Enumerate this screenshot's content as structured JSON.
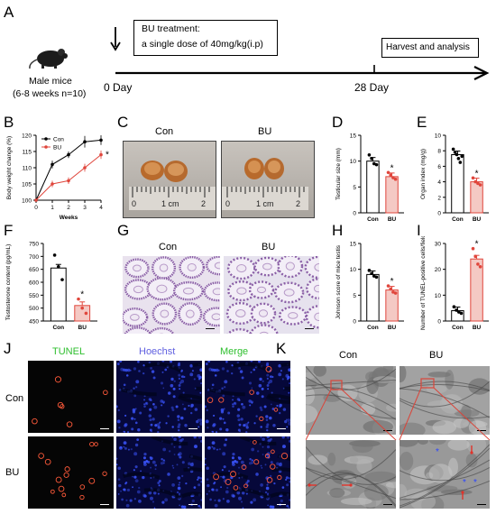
{
  "panels": {
    "A": "A",
    "B": "B",
    "C": "C",
    "D": "D",
    "E": "E",
    "F": "F",
    "G": "G",
    "H": "H",
    "I": "I",
    "J": "J",
    "K": "K"
  },
  "panelA": {
    "mouse_label": "Male mice",
    "mouse_sub": "(6-8 weeks n=10)",
    "treatment_title": "BU treatment:",
    "treatment_desc": "a single dose of 40mg/kg(i.p)",
    "harvest": "Harvest and analysis",
    "day0": "0 Day",
    "day28": "28 Day"
  },
  "panelC": {
    "con": "Con",
    "bu": "BU",
    "ruler_0": "0",
    "ruler_1cm": "1 cm",
    "ruler_2": "2"
  },
  "panelG": {
    "con": "Con",
    "bu": "BU"
  },
  "panelJ": {
    "tunel": "TUNEL",
    "hoechst": "Hoechst",
    "merge": "Merge",
    "con": "Con",
    "bu": "BU",
    "colors": {
      "tunel": "#2dbf2d",
      "hoechst": "#5f5fe0",
      "merge": "#2dbf2d"
    }
  },
  "panelK": {
    "con": "Con",
    "bu": "BU"
  },
  "colors": {
    "con": "#000000",
    "bu": "#e0463c",
    "bu_fill": "#f4c9c4"
  },
  "charts": {
    "B": {
      "type": "line",
      "ylabel": "Body weight change (%)",
      "xlabel": "Weeks",
      "x": [
        0,
        1,
        2,
        3,
        4
      ],
      "ylim": [
        100,
        120
      ],
      "yticks": [
        100,
        105,
        110,
        115,
        120
      ],
      "series": [
        {
          "name": "Con",
          "values": [
            100,
            111,
            114,
            118,
            118.5
          ],
          "err": [
            0.5,
            1.2,
            1.0,
            1.8,
            1.5
          ]
        },
        {
          "name": "BU",
          "values": [
            100,
            105,
            106,
            110,
            114
          ],
          "err": [
            0.5,
            1.0,
            1.0,
            1.2,
            1.3
          ]
        }
      ],
      "star": "*"
    },
    "D": {
      "type": "bar",
      "ylabel": "Testicular size (mm)",
      "categories": [
        "Con",
        "BU"
      ],
      "values": [
        10,
        7
      ],
      "ylim": [
        0,
        15
      ],
      "yticks": [
        0,
        5,
        10,
        15
      ],
      "points": [
        [
          11.2,
          10.5,
          9.5,
          9.3
        ],
        [
          7.8,
          7.3,
          6.8,
          6.5
        ]
      ],
      "star": "*"
    },
    "E": {
      "type": "bar",
      "ylabel": "Organ index (mg/g)",
      "categories": [
        "Con",
        "BU"
      ],
      "values": [
        7.5,
        4
      ],
      "ylim": [
        0,
        10
      ],
      "yticks": [
        0,
        2,
        4,
        6,
        8,
        10
      ],
      "points": [
        [
          8.2,
          7.8,
          7.5,
          7.0,
          6.5,
          7.3
        ],
        [
          4.5,
          4.0,
          3.8,
          3.6
        ]
      ],
      "star": "*"
    },
    "F": {
      "type": "bar",
      "ylabel": "Testosterone content (pg/mL)",
      "categories": [
        "Con",
        "BU"
      ],
      "values": [
        655,
        510
      ],
      "ylim": [
        450,
        750
      ],
      "yticks": [
        450,
        500,
        550,
        600,
        650,
        700,
        750
      ],
      "points": [
        [
          705,
          660,
          610
        ],
        [
          535,
          500,
          480
        ]
      ],
      "star": "*"
    },
    "H": {
      "type": "bar",
      "ylabel": "Johnson score of mice testis",
      "categories": [
        "Con",
        "BU"
      ],
      "values": [
        9,
        6
      ],
      "ylim": [
        0,
        15
      ],
      "yticks": [
        0,
        5,
        10,
        15
      ],
      "points": [
        [
          9.8,
          9.2,
          8.7,
          8.5
        ],
        [
          6.8,
          6.2,
          5.6,
          5.4
        ]
      ],
      "star": "*"
    },
    "I": {
      "type": "bar",
      "ylabel": "Number of TUNEL-positive cells/field",
      "categories": [
        "Con",
        "BU"
      ],
      "values": [
        4,
        24
      ],
      "ylim": [
        0,
        30
      ],
      "yticks": [
        0,
        10,
        20,
        30
      ],
      "points": [
        [
          5.5,
          4.2,
          3.5,
          3.0
        ],
        [
          28,
          25,
          22,
          21
        ]
      ],
      "star": "*"
    }
  }
}
